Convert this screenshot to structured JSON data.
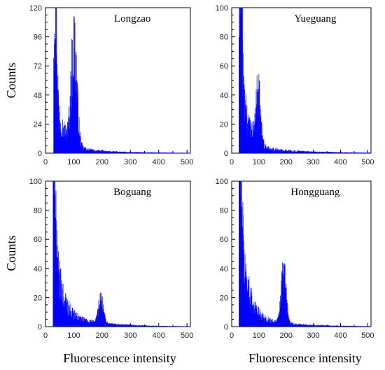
{
  "figure": {
    "ylabel": "Counts",
    "xlabel": "Fluorescence intensity"
  },
  "style": {
    "bar_color": "#0000ff",
    "axis_color": "#000000"
  },
  "chart_data": [
    {
      "type": "bar",
      "title": "Longzao",
      "xlim": [
        0,
        512
      ],
      "ylim": [
        0,
        120
      ],
      "xticks": [
        0,
        100,
        200,
        300,
        400,
        500
      ],
      "yticks": [
        0,
        24,
        48,
        72,
        96,
        120
      ],
      "peaks": [
        {
          "x": 34,
          "height": 92,
          "width": 5
        },
        {
          "x": 100,
          "height": 79,
          "width": 10
        }
      ],
      "tail": {
        "start": 28,
        "start_value": 50,
        "decay": 32,
        "floor": 4,
        "floor_decay": 0.006
      }
    },
    {
      "type": "bar",
      "title": "Yueguang",
      "xlim": [
        0,
        512
      ],
      "ylim": [
        0,
        100
      ],
      "xticks": [
        0,
        100,
        200,
        300,
        400,
        500
      ],
      "yticks": [
        0,
        20,
        40,
        60,
        80,
        100
      ],
      "peaks": [
        {
          "x": 33,
          "height": 100,
          "width": 4
        },
        {
          "x": 96,
          "height": 33,
          "width": 9
        }
      ],
      "tail": {
        "start": 26,
        "start_value": 68,
        "decay": 24,
        "floor": 5,
        "floor_decay": 0.006
      }
    },
    {
      "type": "bar",
      "title": "Boguang",
      "xlim": [
        0,
        512
      ],
      "ylim": [
        0,
        100
      ],
      "xticks": [
        0,
        100,
        200,
        300,
        400,
        500
      ],
      "yticks": [
        0,
        20,
        40,
        60,
        80,
        100
      ],
      "peaks": [
        {
          "x": 30,
          "height": 100,
          "width": 4
        },
        {
          "x": 195,
          "height": 15,
          "width": 9
        }
      ],
      "tail": {
        "start": 26,
        "start_value": 58,
        "decay": 26,
        "floor": 9,
        "floor_decay": 0.008
      }
    },
    {
      "type": "bar",
      "title": "Hongguang",
      "xlim": [
        0,
        512
      ],
      "ylim": [
        0,
        100
      ],
      "xticks": [
        0,
        100,
        200,
        300,
        400,
        500
      ],
      "yticks": [
        0,
        20,
        40,
        60,
        80,
        100
      ],
      "peaks": [
        {
          "x": 32,
          "height": 100,
          "width": 4
        },
        {
          "x": 190,
          "height": 34,
          "width": 9
        }
      ],
      "tail": {
        "start": 26,
        "start_value": 72,
        "decay": 28,
        "floor": 7,
        "floor_decay": 0.007
      }
    }
  ]
}
